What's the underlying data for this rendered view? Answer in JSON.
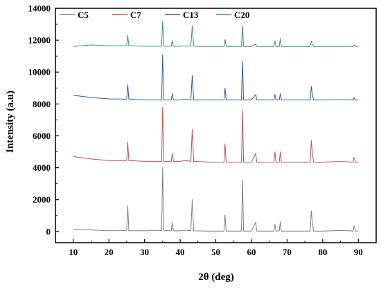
{
  "chart_data": {
    "type": "line",
    "title": "",
    "xlabel": "2θ (deg)",
    "ylabel": "Intensity (a.u)",
    "xlim": [
      5,
      95
    ],
    "ylim": [
      -700,
      14000
    ],
    "xticks": [
      10,
      20,
      30,
      40,
      50,
      60,
      70,
      80,
      90
    ],
    "yticks": [
      0,
      2000,
      4000,
      6000,
      8000,
      10000,
      12000,
      14000
    ],
    "grid": false,
    "legend_position": "top",
    "series": [
      {
        "name": "C5",
        "color": "#7f7f7f",
        "baseline": 150,
        "x": [
          10,
          15,
          20,
          25,
          25.3,
          25.6,
          26,
          30,
          34.8,
          35.1,
          35.4,
          37.5,
          37.8,
          38.1,
          40,
          41.5,
          43,
          43.4,
          43.8,
          48,
          52.3,
          52.6,
          52.9,
          55,
          57.2,
          57.5,
          57.8,
          60,
          61.2,
          61.5,
          64,
          66.3,
          66.6,
          66.9,
          67.8,
          68.1,
          68.4,
          72,
          76.5,
          76.8,
          77.1,
          77.4,
          80,
          84,
          86,
          88.5,
          88.8,
          89.2,
          90
        ],
        "y": [
          150,
          100,
          50,
          60,
          1600,
          60,
          50,
          50,
          60,
          4000,
          60,
          40,
          550,
          40,
          40,
          80,
          40,
          2000,
          40,
          30,
          30,
          1050,
          30,
          30,
          30,
          3250,
          30,
          30,
          580,
          30,
          30,
          30,
          450,
          30,
          40,
          600,
          30,
          30,
          30,
          1300,
          600,
          30,
          30,
          60,
          60,
          30,
          350,
          30,
          30
        ]
      },
      {
        "name": "C7",
        "color": "#c0504d",
        "baseline": 4400,
        "x": [
          10,
          15,
          20,
          25,
          25.3,
          25.6,
          26,
          30,
          34.8,
          35.1,
          35.4,
          37.5,
          37.8,
          38.1,
          40,
          41.5,
          43,
          43.4,
          43.8,
          48,
          52.3,
          52.6,
          52.9,
          55,
          57.2,
          57.5,
          57.8,
          60,
          61.2,
          61.5,
          64,
          66.3,
          66.6,
          66.9,
          67.8,
          68.1,
          68.4,
          72,
          76.5,
          76.8,
          77.1,
          77.4,
          80,
          84,
          86,
          88.5,
          88.8,
          89.2,
          90
        ],
        "y": [
          4700,
          4550,
          4450,
          4450,
          5600,
          4450,
          4450,
          4400,
          4400,
          7800,
          4400,
          4400,
          4900,
          4400,
          4400,
          4450,
          4400,
          6400,
          4400,
          4350,
          4350,
          5500,
          4350,
          4350,
          4350,
          7600,
          4350,
          4350,
          4900,
          4350,
          4350,
          4350,
          5000,
          4350,
          4350,
          5000,
          4350,
          4350,
          4350,
          5700,
          5000,
          4350,
          4350,
          4380,
          4380,
          4350,
          4650,
          4350,
          4350
        ]
      },
      {
        "name": "C13",
        "color": "#2a5caa",
        "baseline": 8250,
        "x": [
          10,
          15,
          20,
          25,
          25.3,
          25.6,
          26,
          30,
          34.8,
          35.1,
          35.4,
          37.5,
          37.8,
          38.1,
          40,
          41.5,
          43,
          43.4,
          43.8,
          48,
          52.3,
          52.6,
          52.9,
          55,
          57.2,
          57.5,
          57.8,
          60,
          61.2,
          61.5,
          64,
          66.3,
          66.6,
          66.9,
          67.8,
          68.1,
          68.4,
          72,
          76.5,
          76.8,
          77.1,
          77.4,
          80,
          84,
          86,
          88.5,
          88.8,
          89.2,
          90
        ],
        "y": [
          8550,
          8400,
          8320,
          8300,
          9200,
          8300,
          8300,
          8250,
          8250,
          11100,
          8250,
          8250,
          8650,
          8250,
          8250,
          8280,
          8250,
          9800,
          8250,
          8250,
          8250,
          9000,
          8250,
          8250,
          8250,
          10700,
          8250,
          8250,
          8600,
          8250,
          8250,
          8250,
          8600,
          8250,
          8250,
          8650,
          8250,
          8250,
          8250,
          9100,
          8600,
          8250,
          8250,
          8260,
          8260,
          8250,
          8400,
          8250,
          8250
        ]
      },
      {
        "name": "C20",
        "color": "#2e9c6a",
        "baseline": 11600,
        "x": [
          10,
          15,
          20,
          25,
          25.3,
          25.6,
          26,
          30,
          34.8,
          35.1,
          35.4,
          37.5,
          37.8,
          38.1,
          40,
          41.5,
          43,
          43.4,
          43.8,
          48,
          52.3,
          52.6,
          52.9,
          55,
          57.2,
          57.5,
          57.8,
          60,
          61.2,
          61.5,
          64,
          66.3,
          66.6,
          66.9,
          67.8,
          68.1,
          68.4,
          72,
          76.5,
          76.8,
          77.1,
          77.4,
          80,
          84,
          86,
          88.5,
          88.8,
          89.2,
          90
        ],
        "y": [
          11600,
          11700,
          11650,
          11650,
          12300,
          11650,
          11650,
          11620,
          11620,
          13200,
          11620,
          11620,
          11980,
          11620,
          11620,
          11640,
          11620,
          12900,
          11620,
          11600,
          11600,
          12050,
          11600,
          11600,
          11600,
          12900,
          11600,
          11600,
          11750,
          11600,
          11600,
          11600,
          11950,
          11600,
          11600,
          12100,
          11600,
          11600,
          11600,
          11950,
          11750,
          11600,
          11600,
          11610,
          11610,
          11600,
          11700,
          11600,
          11600
        ]
      }
    ]
  }
}
